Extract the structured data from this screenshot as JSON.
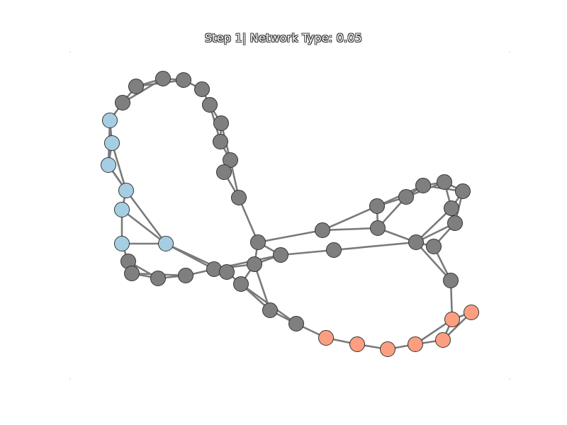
{
  "title": "Step 1| Network Type: 0.05",
  "colors": {
    "default": "#7f7f7f",
    "blue": "#a6cee3",
    "salmon": "#fc9f80",
    "edge": "#7a7a7a",
    "outline": "#333333"
  },
  "nodes": [
    {
      "id": 0,
      "group": "default"
    },
    {
      "id": 1,
      "group": "default"
    },
    {
      "id": 2,
      "group": "default"
    },
    {
      "id": 3,
      "group": "default"
    },
    {
      "id": 4,
      "group": "default"
    },
    {
      "id": 5,
      "group": "default"
    },
    {
      "id": 6,
      "group": "default"
    },
    {
      "id": 7,
      "group": "default"
    },
    {
      "id": 8,
      "group": "default"
    },
    {
      "id": 9,
      "group": "default"
    },
    {
      "id": 10,
      "group": "default"
    },
    {
      "id": 11,
      "group": "blue"
    },
    {
      "id": 12,
      "group": "blue"
    },
    {
      "id": 13,
      "group": "blue"
    },
    {
      "id": 14,
      "group": "blue"
    },
    {
      "id": 15,
      "group": "blue"
    },
    {
      "id": 16,
      "group": "blue"
    },
    {
      "id": 17,
      "group": "blue"
    },
    {
      "id": 18,
      "group": "default"
    },
    {
      "id": 19,
      "group": "default"
    },
    {
      "id": 20,
      "group": "default"
    },
    {
      "id": 21,
      "group": "default"
    },
    {
      "id": 22,
      "group": "default"
    },
    {
      "id": 23,
      "group": "default"
    },
    {
      "id": 24,
      "group": "default"
    },
    {
      "id": 25,
      "group": "default"
    },
    {
      "id": 26,
      "group": "default"
    },
    {
      "id": 27,
      "group": "default"
    },
    {
      "id": 28,
      "group": "default"
    },
    {
      "id": 29,
      "group": "default"
    },
    {
      "id": 30,
      "group": "default"
    },
    {
      "id": 31,
      "group": "salmon"
    },
    {
      "id": 32,
      "group": "salmon"
    },
    {
      "id": 33,
      "group": "salmon"
    },
    {
      "id": 34,
      "group": "salmon"
    },
    {
      "id": 35,
      "group": "salmon"
    },
    {
      "id": 36,
      "group": "salmon"
    },
    {
      "id": 37,
      "group": "salmon"
    },
    {
      "id": 38,
      "group": "default"
    },
    {
      "id": 39,
      "group": "default"
    },
    {
      "id": 40,
      "group": "default"
    },
    {
      "id": 41,
      "group": "default"
    },
    {
      "id": 42,
      "group": "default"
    },
    {
      "id": 43,
      "group": "default"
    },
    {
      "id": 44,
      "group": "default"
    },
    {
      "id": 45,
      "group": "default"
    },
    {
      "id": 46,
      "group": "default"
    },
    {
      "id": 47,
      "group": "default"
    },
    {
      "id": 48,
      "group": "default"
    },
    {
      "id": 49,
      "group": "default"
    }
  ],
  "edges": [
    [
      0,
      1
    ],
    [
      1,
      2
    ],
    [
      2,
      3
    ],
    [
      3,
      4
    ],
    [
      4,
      5
    ],
    [
      5,
      6
    ],
    [
      6,
      7
    ],
    [
      7,
      8
    ],
    [
      8,
      9
    ],
    [
      9,
      10
    ],
    [
      0,
      2
    ],
    [
      1,
      3
    ],
    [
      3,
      5
    ],
    [
      4,
      6
    ],
    [
      5,
      7
    ],
    [
      6,
      8
    ],
    [
      7,
      9
    ],
    [
      8,
      10
    ],
    [
      0,
      11
    ],
    [
      11,
      12
    ],
    [
      12,
      13
    ],
    [
      13,
      14
    ],
    [
      14,
      15
    ],
    [
      15,
      16
    ],
    [
      16,
      17
    ],
    [
      11,
      13
    ],
    [
      12,
      14
    ],
    [
      13,
      15
    ],
    [
      14,
      16
    ],
    [
      15,
      17
    ],
    [
      14,
      17
    ],
    [
      16,
      18
    ],
    [
      17,
      18
    ],
    [
      16,
      19
    ],
    [
      18,
      19
    ],
    [
      19,
      20
    ],
    [
      20,
      21
    ],
    [
      21,
      22
    ],
    [
      18,
      20
    ],
    [
      19,
      21
    ],
    [
      17,
      22
    ],
    [
      17,
      23
    ],
    [
      22,
      23
    ],
    [
      22,
      25
    ],
    [
      23,
      24
    ],
    [
      24,
      25
    ],
    [
      10,
      26
    ],
    [
      26,
      27
    ],
    [
      27,
      28
    ],
    [
      28,
      29
    ],
    [
      29,
      30
    ],
    [
      30,
      31
    ],
    [
      26,
      28
    ],
    [
      27,
      29
    ],
    [
      28,
      30
    ],
    [
      31,
      32
    ],
    [
      32,
      33
    ],
    [
      33,
      34
    ],
    [
      34,
      35
    ],
    [
      35,
      36
    ],
    [
      36,
      37
    ],
    [
      31,
      33
    ],
    [
      34,
      36
    ],
    [
      35,
      37
    ],
    [
      36,
      38
    ],
    [
      37,
      38
    ],
    [
      38,
      39
    ],
    [
      39,
      40
    ],
    [
      40,
      41
    ],
    [
      41,
      42
    ],
    [
      42,
      43
    ],
    [
      43,
      44
    ],
    [
      44,
      45
    ],
    [
      45,
      46
    ],
    [
      46,
      47
    ],
    [
      40,
      42
    ],
    [
      41,
      43
    ],
    [
      42,
      44
    ],
    [
      44,
      46
    ],
    [
      39,
      41
    ],
    [
      47,
      48
    ],
    [
      48,
      49
    ],
    [
      46,
      48
    ],
    [
      47,
      49
    ],
    [
      26,
      47
    ],
    [
      26,
      49
    ],
    [
      49,
      39
    ],
    [
      48,
      25
    ],
    [
      24,
      46
    ],
    [
      23,
      40
    ],
    [
      25,
      39
    ],
    [
      39,
      46
    ]
  ]
}
